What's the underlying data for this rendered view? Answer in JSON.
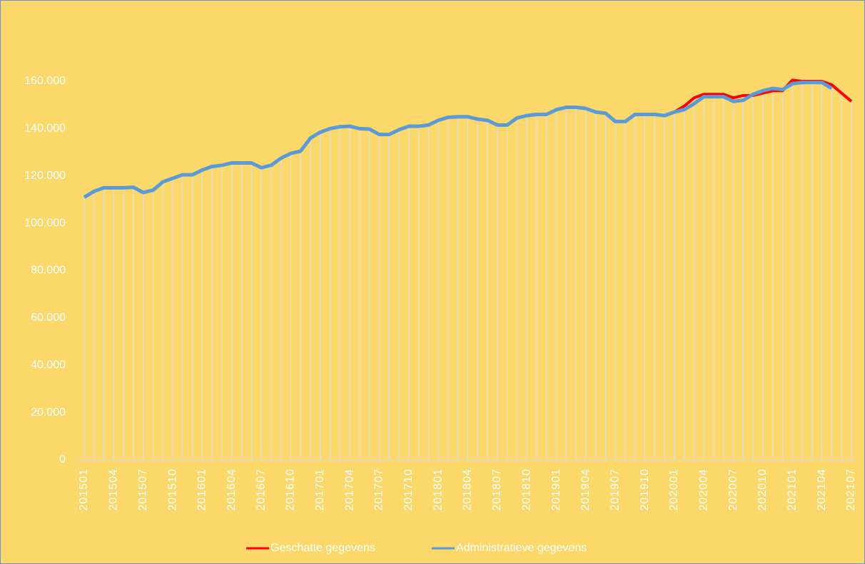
{
  "chart_data": {
    "type": "line",
    "categories": [
      "201501",
      null,
      null,
      "201504",
      null,
      null,
      "201507",
      null,
      null,
      "201510",
      null,
      null,
      "201601",
      null,
      null,
      "201604",
      null,
      null,
      "201607",
      null,
      null,
      "201610",
      null,
      null,
      "201701",
      null,
      null,
      "201704",
      null,
      null,
      "201707",
      null,
      null,
      "201710",
      null,
      null,
      "201801",
      null,
      null,
      "201804",
      null,
      null,
      "201807",
      null,
      null,
      "201810",
      null,
      null,
      "201901",
      null,
      null,
      "201904",
      null,
      null,
      "201907",
      null,
      null,
      "201910",
      null,
      null,
      "202001",
      null,
      null,
      "202004",
      null,
      null,
      "202007",
      null,
      null,
      "202010",
      null,
      null,
      "202101",
      null,
      null,
      "202104",
      null,
      null,
      "202107"
    ],
    "series": [
      {
        "name": "Geschatte gegevens",
        "color": "#ff0000",
        "values": [
          111000,
          113500,
          115000,
          115000,
          115000,
          115200,
          113000,
          114000,
          117500,
          119000,
          120500,
          120500,
          122500,
          124000,
          124500,
          125500,
          125500,
          125500,
          123500,
          124500,
          127500,
          129500,
          130500,
          136000,
          138500,
          140000,
          140800,
          141000,
          140000,
          139800,
          137500,
          137500,
          139500,
          141000,
          141000,
          141500,
          143500,
          144800,
          145000,
          145000,
          144000,
          143500,
          141500,
          141500,
          144500,
          145500,
          146000,
          146000,
          148000,
          149000,
          149000,
          148500,
          147000,
          146500,
          143000,
          143000,
          146000,
          146000,
          146000,
          145500,
          147000,
          149500,
          153000,
          154500,
          154500,
          154500,
          153000,
          154000,
          154000,
          155000,
          156000,
          156000,
          160500,
          160000,
          160000,
          160000,
          158500,
          155000,
          151500
        ]
      },
      {
        "name": "Administratieve gegevens",
        "color": "#5b9bd5",
        "values": [
          111000,
          113500,
          115000,
          115000,
          115000,
          115200,
          113000,
          114000,
          117500,
          119000,
          120500,
          120500,
          122500,
          124000,
          124500,
          125500,
          125500,
          125500,
          123500,
          124500,
          127500,
          129500,
          130500,
          136000,
          138500,
          140000,
          140800,
          141000,
          140000,
          139800,
          137500,
          137500,
          139500,
          141000,
          141000,
          141500,
          143500,
          144800,
          145000,
          145000,
          144000,
          143500,
          141500,
          141500,
          144500,
          145500,
          146000,
          146000,
          148000,
          149000,
          149000,
          148500,
          147000,
          146500,
          143000,
          143000,
          146000,
          146000,
          146000,
          145500,
          147000,
          148000,
          150500,
          153500,
          153500,
          153500,
          151500,
          152000,
          154500,
          156000,
          157000,
          156500,
          159000,
          159500,
          159500,
          159500,
          157000,
          null,
          null
        ]
      }
    ],
    "ylim": [
      0,
      160000
    ],
    "yticks": [
      0,
      {
        "value": 20000,
        "label": "20.000"
      },
      {
        "value": 40000,
        "label": "40.000"
      },
      {
        "value": 60000,
        "label": "60.000"
      },
      {
        "value": 80000,
        "label": "80.000"
      },
      {
        "value": 100000,
        "label": "100.000"
      },
      {
        "value": 120000,
        "label": "120.000"
      },
      {
        "value": 140000,
        "label": "140.000"
      },
      {
        "value": 160000,
        "label": "160.000"
      }
    ],
    "grid": false,
    "legend": "bottom",
    "drop_lines": true
  }
}
